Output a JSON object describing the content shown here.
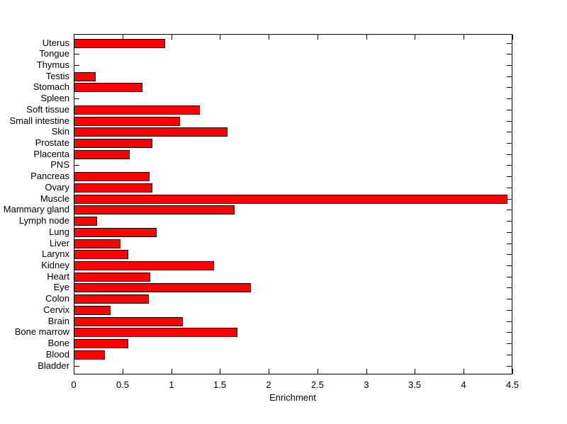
{
  "chart_data": {
    "type": "bar",
    "orientation": "horizontal",
    "title": "",
    "xlabel": "Enrichment",
    "ylabel": "",
    "xlim": [
      0,
      4.5
    ],
    "xticks": [
      0,
      0.5,
      1,
      1.5,
      2,
      2.5,
      3,
      3.5,
      4,
      4.5
    ],
    "xtick_labels": [
      "0",
      "0.5",
      "1",
      "1.5",
      "2",
      "2.5",
      "3",
      "3.5",
      "4",
      "4.5"
    ],
    "grid": false,
    "legend": null,
    "box": true,
    "tick_direction": "in",
    "categories": [
      "Uterus",
      "Tongue",
      "Thymus",
      "Testis",
      "Stomach",
      "Spleen",
      "Soft tissue",
      "Small intestine",
      "Skin",
      "Prostate",
      "Placenta",
      "PNS",
      "Pancreas",
      "Ovary",
      "Muscle",
      "Mammary gland",
      "Lymph node",
      "Lung",
      "Liver",
      "Larynx",
      "Kidney",
      "Heart",
      "Eye",
      "Colon",
      "Cervix",
      "Brain",
      "Bone marrow",
      "Bone",
      "Blood",
      "Bladder"
    ],
    "values": [
      0.93,
      0,
      0,
      0.22,
      0.7,
      0,
      1.29,
      1.08,
      1.57,
      0.8,
      0.57,
      0,
      0.77,
      0.8,
      4.44,
      1.64,
      0.23,
      0.84,
      0.47,
      0.55,
      1.43,
      0.78,
      1.81,
      0.76,
      0.37,
      1.11,
      1.67,
      0.55,
      0.31,
      0
    ]
  },
  "colors": {
    "bar_fill": "#ff0000",
    "bar_edge": "#000000",
    "axis": "#000000",
    "background": "#ffffff",
    "text": "#000000"
  }
}
